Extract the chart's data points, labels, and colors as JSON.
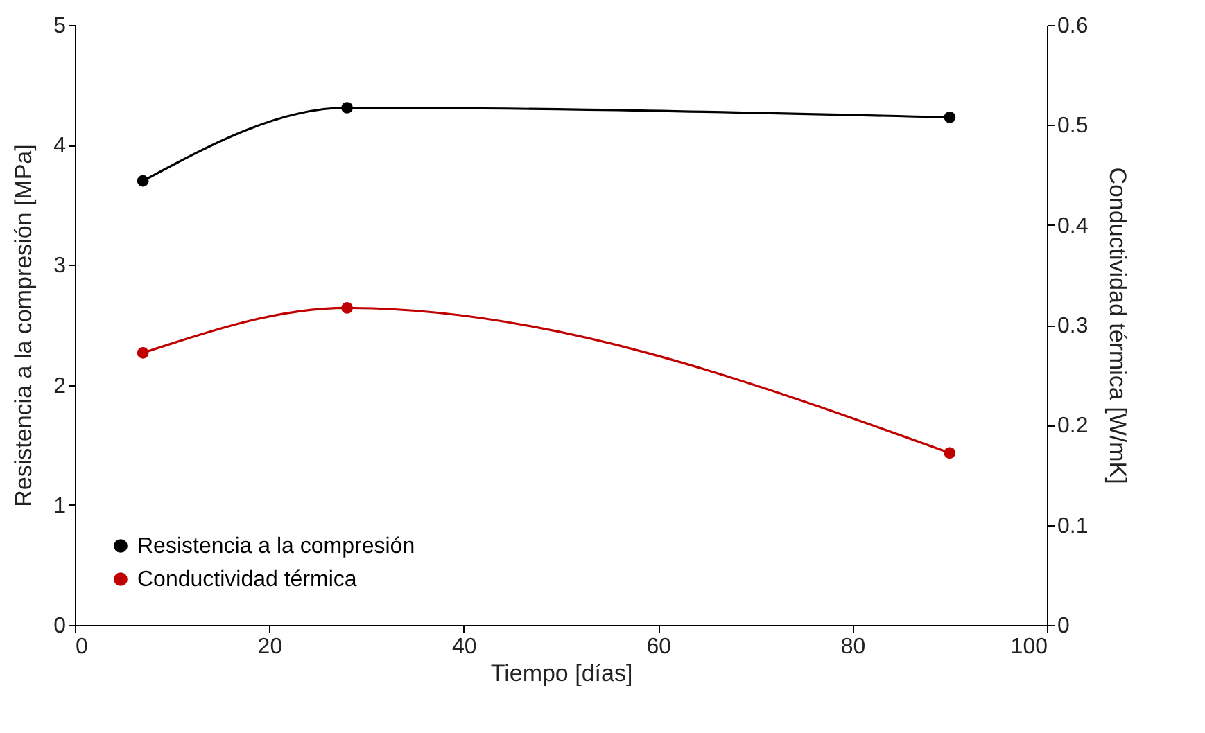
{
  "chart_data": {
    "type": "line",
    "xlabel": "Tiempo [días]",
    "ylabel": "Resistencia a la compresión [MPa]",
    "y2label": "Conductividad térmica [W/mK]",
    "x": [
      7,
      28,
      90
    ],
    "series": [
      {
        "name": "Resistencia a la compresión",
        "color": "#000000",
        "values": [
          3.7,
          4.31,
          4.23
        ]
      },
      {
        "name": "Conductividad térmica",
        "color": "#c00000",
        "values": [
          0.272,
          0.317,
          0.172
        ],
        "axis": "y2"
      }
    ],
    "xlim": [
      0,
      100
    ],
    "xticks": [
      0,
      20,
      40,
      60,
      80,
      100
    ],
    "ylim": [
      0,
      5
    ],
    "yticks": [
      0,
      1,
      2,
      3,
      4,
      5
    ],
    "y2lim": [
      0,
      0.6
    ],
    "y2ticks": [
      0,
      0.1,
      0.2,
      0.3,
      0.4,
      0.5,
      0.6
    ],
    "legend": "bottom left",
    "marker": "circle"
  }
}
